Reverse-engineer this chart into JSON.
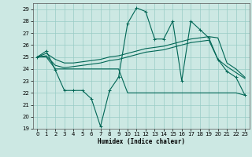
{
  "xlabel": "Humidex (Indice chaleur)",
  "xlim": [
    -0.5,
    23.5
  ],
  "ylim": [
    19,
    29.5
  ],
  "yticks": [
    19,
    20,
    21,
    22,
    23,
    24,
    25,
    26,
    27,
    28,
    29
  ],
  "xticks": [
    0,
    1,
    2,
    3,
    4,
    5,
    6,
    7,
    8,
    9,
    10,
    11,
    12,
    13,
    14,
    15,
    16,
    17,
    18,
    19,
    20,
    21,
    22,
    23
  ],
  "bg_color": "#cce8e3",
  "grid_color": "#99ccc5",
  "line_color": "#006655",
  "line_volatile_x": [
    0,
    1,
    2,
    3,
    4,
    5,
    6,
    7,
    8,
    9,
    10,
    11,
    12,
    13,
    14,
    15,
    16,
    17,
    18,
    19,
    20,
    21,
    22,
    23
  ],
  "line_volatile_y": [
    25.0,
    25.5,
    23.9,
    22.2,
    22.2,
    22.2,
    21.5,
    19.2,
    22.2,
    23.3,
    27.8,
    29.1,
    28.8,
    26.5,
    26.5,
    28.0,
    23.0,
    28.0,
    27.3,
    26.6,
    24.8,
    23.8,
    23.3,
    21.8
  ],
  "line_flat_x": [
    0,
    1,
    2,
    3,
    4,
    5,
    6,
    7,
    8,
    9,
    10,
    11,
    12,
    13,
    14,
    15,
    16,
    17,
    18,
    19,
    20,
    21,
    22,
    23
  ],
  "line_flat_y": [
    25.0,
    25.0,
    24.0,
    24.0,
    24.0,
    24.0,
    24.0,
    24.0,
    24.0,
    24.0,
    22.0,
    22.0,
    22.0,
    22.0,
    22.0,
    22.0,
    22.0,
    22.0,
    22.0,
    22.0,
    22.0,
    22.0,
    22.0,
    21.8
  ],
  "line_upper_x": [
    0,
    1,
    2,
    3,
    4,
    5,
    6,
    7,
    8,
    9,
    10,
    11,
    12,
    13,
    14,
    15,
    16,
    17,
    18,
    19,
    20,
    21,
    22,
    23
  ],
  "line_upper_y": [
    25.0,
    25.3,
    24.8,
    24.5,
    24.5,
    24.6,
    24.7,
    24.8,
    25.0,
    25.1,
    25.3,
    25.5,
    25.7,
    25.8,
    25.9,
    26.1,
    26.3,
    26.5,
    26.6,
    26.7,
    26.6,
    24.5,
    24.0,
    23.3
  ],
  "line_mid_x": [
    0,
    1,
    2,
    3,
    4,
    5,
    6,
    7,
    8,
    9,
    10,
    11,
    12,
    13,
    14,
    15,
    16,
    17,
    18,
    19,
    20,
    21,
    22,
    23
  ],
  "line_mid_y": [
    25.0,
    25.1,
    24.3,
    24.1,
    24.2,
    24.3,
    24.4,
    24.5,
    24.7,
    24.8,
    25.0,
    25.2,
    25.4,
    25.5,
    25.6,
    25.8,
    26.0,
    26.2,
    26.3,
    26.4,
    24.8,
    24.2,
    23.7,
    23.2
  ]
}
